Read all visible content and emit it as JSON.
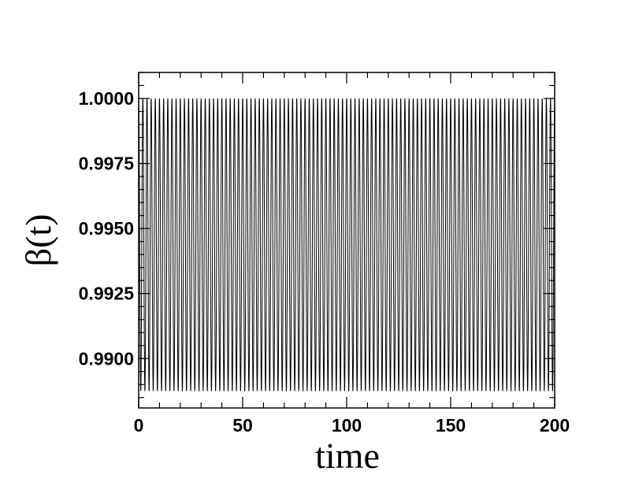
{
  "chart_data": {
    "type": "line",
    "title": "",
    "xlabel": "time",
    "ylabel": "β(t)",
    "xlim": [
      0,
      200
    ],
    "ylim": [
      0.9881,
      1.001
    ],
    "x_ticks": [
      0,
      50,
      100,
      150,
      200
    ],
    "x_tick_labels": [
      "0",
      "50",
      "100",
      "150",
      "200"
    ],
    "y_ticks": [
      0.99,
      0.9925,
      0.995,
      0.9975,
      1.0
    ],
    "y_tick_labels": [
      "0.9900",
      "0.9925",
      "0.9950",
      "0.9975",
      "1.0000"
    ],
    "grid": false,
    "legend": "none",
    "series": [
      {
        "color": "#000000",
        "function": "oscillation",
        "max": 1.0,
        "min": 0.98875,
        "period": 2.0,
        "x_start": 0,
        "x_end": 200
      }
    ]
  }
}
